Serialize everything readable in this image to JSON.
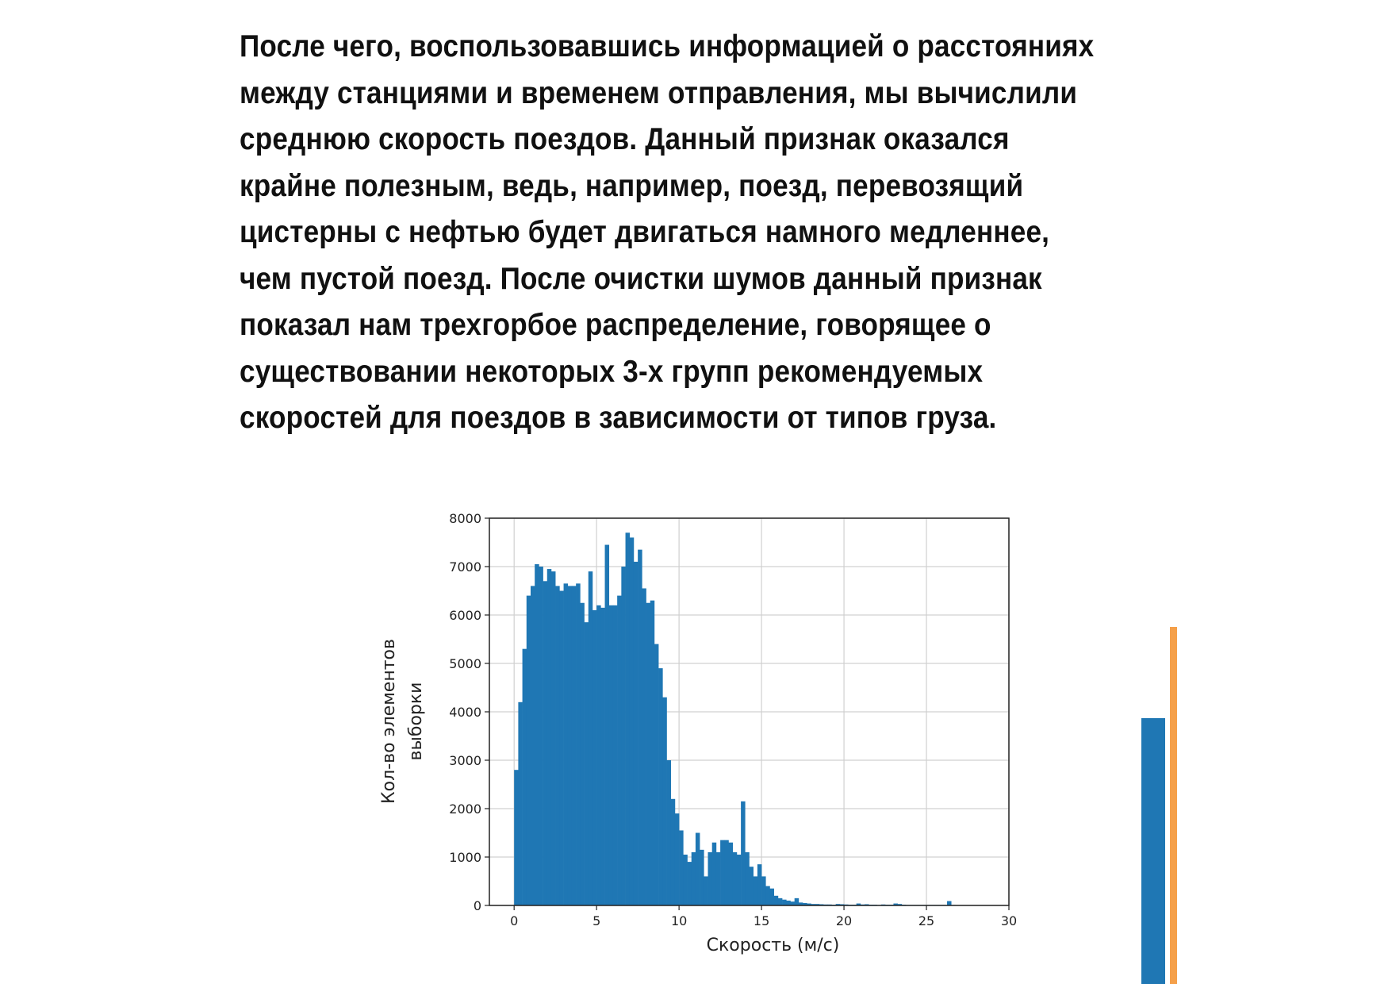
{
  "paragraph": {
    "lines": [
      "После чего, воспользовавшись информацией о расстояниях",
      "между станциями и временем отправления, мы вычислили",
      "среднюю скорость поездов. Данный признак оказался",
      "крайне полезным, ведь, например, поезд, перевозящий",
      "цистерны с нефтью будет двигаться намного медленнее,",
      "чем пустой поезд. После очистки шумов данный признак",
      "показал нам трехгорбое распределение, говорящее о",
      "существовании некоторых 3-х групп рекомендуемых",
      "скоростей для поездов в зависимости от типов груза."
    ]
  },
  "decoration": {
    "blue_bar_color": "#1f77b4",
    "orange_bar_color": "#f5a04a"
  },
  "chart_data": {
    "type": "bar",
    "title": "",
    "xlabel": "Скорость (м/с)",
    "ylabel_lines": [
      "Кол-во элементов",
      "выборки"
    ],
    "xlim": [
      -1.5,
      30
    ],
    "ylim": [
      0,
      8000
    ],
    "xticks": [
      0,
      5,
      10,
      15,
      20,
      25,
      30
    ],
    "yticks": [
      0,
      1000,
      2000,
      3000,
      4000,
      5000,
      6000,
      7000,
      8000
    ],
    "grid": true,
    "color": "#1f77b4",
    "bin_width": 0.25,
    "bin_start": 0,
    "values": [
      2800,
      4200,
      5300,
      6400,
      6600,
      7050,
      7000,
      6700,
      6950,
      6900,
      6600,
      6500,
      6650,
      6600,
      6600,
      6650,
      6250,
      5850,
      6900,
      6100,
      6200,
      6150,
      7450,
      6200,
      6200,
      6400,
      7000,
      7700,
      7600,
      7100,
      7350,
      6550,
      6250,
      6300,
      5400,
      4900,
      4300,
      3000,
      2200,
      1900,
      1550,
      1050,
      900,
      1100,
      1500,
      1150,
      600,
      1100,
      1300,
      1100,
      1350,
      1350,
      1300,
      1100,
      1050,
      2150,
      1100,
      800,
      600,
      850,
      600,
      400,
      350,
      200,
      150,
      120,
      100,
      80,
      150,
      60,
      50,
      40,
      30,
      30,
      25,
      20,
      20,
      15,
      30,
      25,
      20,
      15,
      15,
      40,
      20,
      25,
      15,
      15,
      10,
      20,
      15,
      15,
      40,
      30,
      15,
      10,
      10,
      10,
      10,
      10,
      10,
      10,
      10,
      10,
      10,
      90,
      10,
      5
    ]
  }
}
